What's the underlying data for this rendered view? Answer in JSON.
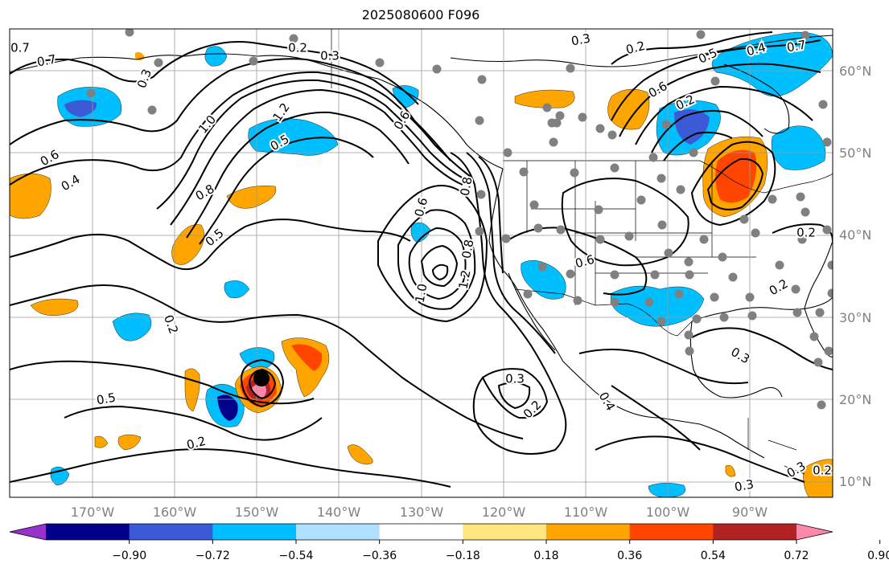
{
  "title": "2025080600 F096",
  "map": {
    "projection": "PlateCarree",
    "lon_range": [
      -180,
      -80
    ],
    "lat_range": [
      8,
      65
    ],
    "gridlines": true,
    "lat_labels": [
      "60°N",
      "50°N",
      "40°N",
      "30°N",
      "20°N",
      "10°N"
    ],
    "lon_labels": [
      "170°W",
      "160°W",
      "150°W",
      "140°W",
      "130°W",
      "120°W",
      "110°W",
      "100°W",
      "90°W"
    ],
    "contour_color": "#000000",
    "station_color": "#808080",
    "contour_labels": [
      "0.7",
      "0.2",
      "0.3",
      "0.3",
      "0.2",
      "0.3",
      "0.6",
      "1.0",
      "1.2",
      "0.6",
      "0.8",
      "0.4",
      "0.5",
      "0.5",
      "0.6",
      "0.8",
      "1.0",
      "1.2",
      "0.8",
      "0.6",
      "0.2",
      "0.4",
      "0.7",
      "0.5",
      "0.6",
      "0.3",
      "0.2",
      "0.4",
      "0.5",
      "0.2",
      "0.2",
      "0.3",
      "0.2",
      "0.3",
      "0.3",
      "0.2",
      "0.2",
      "0.7"
    ],
    "cyclone_marker": "storm-center-dot"
  },
  "colorbar": {
    "ticks": [
      "−0.90",
      "−0.72",
      "−0.54",
      "−0.36",
      "−0.18",
      "0.18",
      "0.36",
      "0.54",
      "0.72",
      "0.90"
    ],
    "colors": [
      "#9932cc",
      "#00008b",
      "#3b5bd6",
      "#00bfff",
      "#afe0ff",
      "#ffffff",
      "#ffe680",
      "#ffa500",
      "#ff4500",
      "#b22222",
      "#ff88aa"
    ],
    "extend": "both"
  }
}
